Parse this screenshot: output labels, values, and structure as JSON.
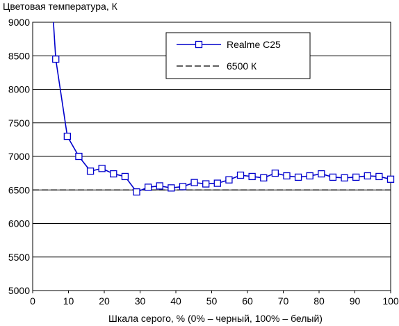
{
  "chart_data": {
    "type": "line",
    "title": "",
    "ylabel": "Цветовая температура, К",
    "xlabel": "Шкала серого, % (0% – черный, 100% – белый)",
    "xlim": [
      0,
      100
    ],
    "ylim": [
      5000,
      9000
    ],
    "xticks": [
      0,
      10,
      20,
      30,
      40,
      50,
      60,
      70,
      80,
      90,
      100
    ],
    "yticks": [
      5000,
      5500,
      6000,
      6500,
      7000,
      7500,
      8000,
      8500,
      9000
    ],
    "grid": "horizontal",
    "legend_position": "top-right",
    "series": [
      {
        "name": "Realme C25",
        "color": "#0000cc",
        "marker": "square-open",
        "x_clip_start": [
          5.8,
          9000
        ],
        "x": [
          6.45,
          9.68,
          12.9,
          16.13,
          19.35,
          22.58,
          25.81,
          29.03,
          32.26,
          35.48,
          38.71,
          41.94,
          45.16,
          48.39,
          51.61,
          54.84,
          58.06,
          61.29,
          64.52,
          67.74,
          70.97,
          74.19,
          77.42,
          80.65,
          83.87,
          87.1,
          90.32,
          93.55,
          96.77,
          100
        ],
        "values": [
          8450,
          7300,
          7000,
          6780,
          6820,
          6740,
          6700,
          6470,
          6540,
          6560,
          6530,
          6550,
          6610,
          6590,
          6600,
          6650,
          6720,
          6700,
          6680,
          6750,
          6710,
          6690,
          6710,
          6740,
          6690,
          6680,
          6690,
          6710,
          6700,
          6660
        ]
      },
      {
        "name": "6500 К",
        "color": "#000000",
        "style": "dashed",
        "constant": 6500
      }
    ]
  }
}
